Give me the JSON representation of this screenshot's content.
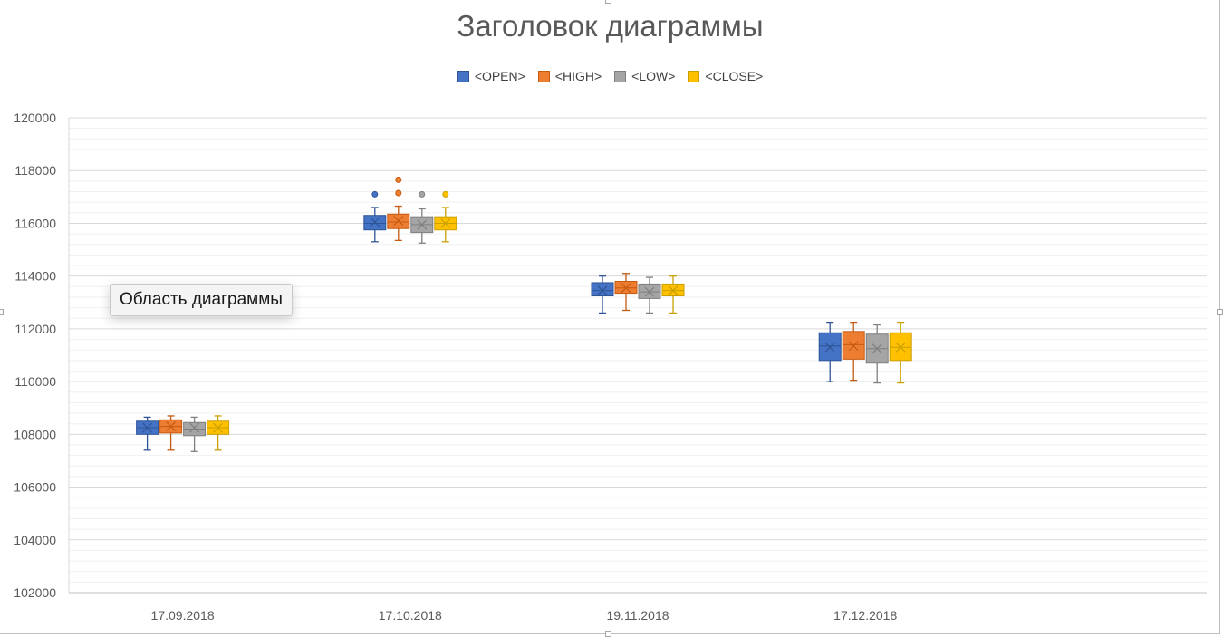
{
  "chart_data": {
    "type": "boxplot",
    "title": "Заголовок диаграммы",
    "xlabel": "",
    "ylabel": "",
    "ylim": [
      102000,
      120000
    ],
    "y_ticks": [
      "120000",
      "118000",
      "116000",
      "114000",
      "112000",
      "110000",
      "108000",
      "106000",
      "104000",
      "102000"
    ],
    "categories": [
      "17.09.2018",
      "17.10.2018",
      "19.11.2018",
      "17.12.2018"
    ],
    "grid": true,
    "legend_position": "top",
    "series": [
      {
        "name": "<OPEN>",
        "color": "#4472c4",
        "stroke": "#2f5597",
        "boxes": [
          {
            "min": 107400,
            "q1": 108000,
            "median": 108250,
            "mean": 108250,
            "q3": 108500,
            "max": 108650,
            "outliers": []
          },
          {
            "min": 115300,
            "q1": 115750,
            "median": 116000,
            "mean": 116050,
            "q3": 116300,
            "max": 116600,
            "outliers": [
              117100
            ]
          },
          {
            "min": 112600,
            "q1": 113250,
            "median": 113450,
            "mean": 113450,
            "q3": 113750,
            "max": 114000,
            "outliers": []
          },
          {
            "min": 110000,
            "q1": 110800,
            "median": 111350,
            "mean": 111300,
            "q3": 111850,
            "max": 112250,
            "outliers": []
          }
        ]
      },
      {
        "name": "<HIGH>",
        "color": "#ed7d31",
        "stroke": "#c55a11",
        "boxes": [
          {
            "min": 107400,
            "q1": 108050,
            "median": 108300,
            "mean": 108300,
            "q3": 108550,
            "max": 108700,
            "outliers": []
          },
          {
            "min": 115350,
            "q1": 115800,
            "median": 116050,
            "mean": 116100,
            "q3": 116350,
            "max": 116650,
            "outliers": [
              117150,
              117650
            ]
          },
          {
            "min": 112700,
            "q1": 113350,
            "median": 113550,
            "mean": 113550,
            "q3": 113800,
            "max": 114100,
            "outliers": []
          },
          {
            "min": 110050,
            "q1": 110850,
            "median": 111400,
            "mean": 111350,
            "q3": 111900,
            "max": 112250,
            "outliers": []
          }
        ]
      },
      {
        "name": "<LOW>",
        "color": "#a5a5a5",
        "stroke": "#7f7f7f",
        "boxes": [
          {
            "min": 107350,
            "q1": 107950,
            "median": 108200,
            "mean": 108250,
            "q3": 108450,
            "max": 108650,
            "outliers": []
          },
          {
            "min": 115250,
            "q1": 115650,
            "median": 115950,
            "mean": 115950,
            "q3": 116250,
            "max": 116550,
            "outliers": [
              117100
            ]
          },
          {
            "min": 112600,
            "q1": 113150,
            "median": 113400,
            "mean": 113400,
            "q3": 113700,
            "max": 113950,
            "outliers": []
          },
          {
            "min": 109950,
            "q1": 110700,
            "median": 111250,
            "mean": 111250,
            "q3": 111800,
            "max": 112150,
            "outliers": []
          }
        ]
      },
      {
        "name": "<CLOSE>",
        "color": "#ffc000",
        "stroke": "#c9a000",
        "boxes": [
          {
            "min": 107400,
            "q1": 108000,
            "median": 108250,
            "mean": 108250,
            "q3": 108500,
            "max": 108700,
            "outliers": []
          },
          {
            "min": 115300,
            "q1": 115750,
            "median": 116000,
            "mean": 116000,
            "q3": 116250,
            "max": 116600,
            "outliers": [
              117100
            ]
          },
          {
            "min": 112600,
            "q1": 113250,
            "median": 113450,
            "mean": 113450,
            "q3": 113700,
            "max": 114000,
            "outliers": []
          },
          {
            "min": 109950,
            "q1": 110800,
            "median": 111300,
            "mean": 111300,
            "q3": 111850,
            "max": 112250,
            "outliers": []
          }
        ]
      }
    ]
  },
  "tooltip": {
    "text": "Область диаграммы"
  }
}
